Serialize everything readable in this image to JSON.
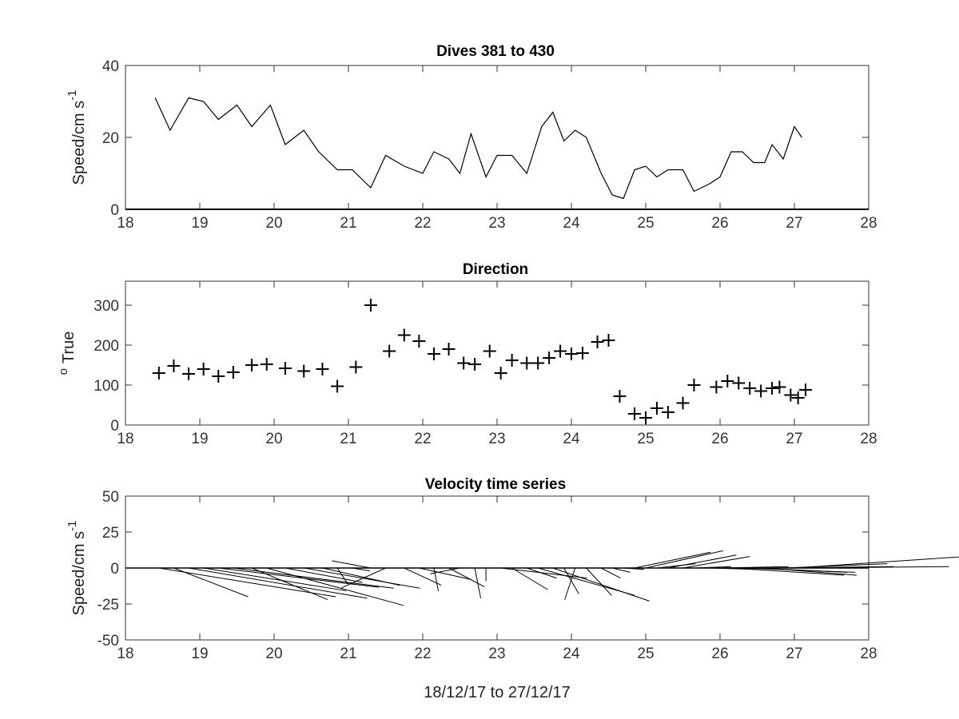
{
  "chart_data": [
    {
      "type": "line",
      "title": "Dives 381 to 430",
      "ylabel": "Speed/cm s",
      "ylabel_superscript": "-1",
      "xlim": [
        18,
        28
      ],
      "ylim": [
        0,
        40
      ],
      "xticks": [
        18,
        19,
        20,
        21,
        22,
        23,
        24,
        25,
        26,
        27,
        28
      ],
      "yticks": [
        0,
        20,
        40
      ],
      "color": "#000000",
      "x": [
        18.4,
        18.6,
        18.85,
        19.05,
        19.25,
        19.5,
        19.7,
        19.95,
        20.15,
        20.4,
        20.6,
        20.85,
        21.05,
        21.3,
        21.5,
        21.75,
        22.0,
        22.15,
        22.35,
        22.5,
        22.65,
        22.85,
        23.0,
        23.2,
        23.4,
        23.6,
        23.75,
        23.9,
        24.05,
        24.2,
        24.4,
        24.55,
        24.7,
        24.85,
        25.0,
        25.15,
        25.3,
        25.5,
        25.65,
        25.85,
        26.0,
        26.15,
        26.3,
        26.45,
        26.6,
        26.7,
        26.85,
        27.0,
        27.1
      ],
      "y": [
        31,
        22,
        31,
        30,
        25,
        29,
        23,
        29,
        18,
        22,
        16,
        11,
        11,
        6,
        15,
        12,
        10,
        16,
        14,
        10,
        21,
        9,
        15,
        15,
        10,
        23,
        27,
        19,
        22,
        20,
        10,
        4,
        3,
        11,
        12,
        9,
        11,
        11,
        5,
        7,
        9,
        16,
        16,
        13,
        13,
        18,
        14,
        23,
        20
      ]
    },
    {
      "type": "scatter",
      "title": "Direction",
      "ylabel": "True",
      "ylabel_superscript": "o",
      "xlim": [
        18,
        28
      ],
      "ylim": [
        0,
        360
      ],
      "xticks": [
        18,
        19,
        20,
        21,
        22,
        23,
        24,
        25,
        26,
        27,
        28
      ],
      "yticks": [
        0,
        100,
        200,
        300
      ],
      "marker": "+",
      "color": "#000000",
      "x": [
        18.45,
        18.65,
        18.85,
        19.05,
        19.25,
        19.45,
        19.7,
        19.9,
        20.15,
        20.4,
        20.65,
        20.85,
        21.1,
        21.3,
        21.55,
        21.75,
        21.95,
        22.15,
        22.35,
        22.55,
        22.7,
        22.9,
        23.05,
        23.2,
        23.4,
        23.55,
        23.7,
        23.85,
        24.0,
        24.15,
        24.35,
        24.5,
        24.65,
        24.85,
        25.0,
        25.15,
        25.3,
        25.5,
        25.65,
        25.95,
        26.1,
        26.25,
        26.4,
        26.55,
        26.7,
        26.8,
        26.95,
        27.05,
        27.15
      ],
      "y": [
        130,
        148,
        128,
        140,
        122,
        132,
        150,
        152,
        142,
        135,
        140,
        97,
        145,
        300,
        185,
        225,
        210,
        178,
        190,
        155,
        152,
        185,
        130,
        162,
        155,
        155,
        168,
        185,
        178,
        180,
        208,
        212,
        72,
        28,
        18,
        42,
        32,
        55,
        100,
        95,
        110,
        105,
        92,
        85,
        92,
        95,
        75,
        68,
        88
      ]
    },
    {
      "type": "quiver",
      "title": "Velocity time series",
      "ylabel": "Speed/cm s",
      "ylabel_superscript": "-1",
      "xlabel": "18/12/17 to 27/12/17",
      "xlim": [
        18,
        28
      ],
      "ylim": [
        -50,
        50
      ],
      "xticks": [
        18,
        19,
        20,
        21,
        22,
        23,
        24,
        25,
        26,
        27,
        28
      ],
      "yticks": [
        -50,
        -25,
        0,
        25,
        50
      ],
      "color": "#000000",
      "x": [
        18.45,
        18.65,
        18.85,
        19.05,
        19.25,
        19.45,
        19.7,
        19.9,
        20.15,
        20.4,
        20.65,
        20.85,
        21.05,
        21.3,
        21.5,
        21.75,
        21.95,
        22.15,
        22.35,
        22.5,
        22.7,
        22.85,
        23.05,
        23.2,
        23.4,
        23.55,
        23.75,
        23.9,
        24.05,
        24.2,
        24.4,
        24.55,
        24.7,
        24.85,
        25.0,
        25.15,
        25.3,
        25.5,
        25.65,
        25.85,
        26.0,
        26.15,
        26.3,
        26.45,
        26.6,
        26.7,
        26.85,
        27.0,
        27.1
      ],
      "u": [
        23.8,
        10.0,
        24.0,
        19.2,
        21.6,
        21.6,
        10.2,
        18.4,
        10.4,
        15.6,
        10.4,
        1.4,
        2.4,
        -5.2,
        -6.0,
        5.0,
        7.0,
        0.6,
        4.8,
        -4.0,
        0.8,
        0.0,
        11.6,
        4.8,
        4.0,
        13.0,
        13.0,
        2.0,
        -1.4,
        3.4,
        2.6,
        2.4,
        2.8,
        10.2,
        10.4,
        5.2,
        9.2,
        9.0,
        5.0,
        6.4,
        9.2,
        15.2,
        15.2,
        12.6,
        12.4,
        16.4,
        14.0,
        23.0,
        19.8
      ],
      "v": [
        -20.0,
        -20.0,
        -21.0,
        -15.8,
        -13.4,
        -14.0,
        -22.0,
        -26.0,
        -10.0,
        -14.0,
        -12.0,
        -11.0,
        -2.0,
        5.0,
        -14.0,
        -12.0,
        -8.0,
        -16.0,
        -13.0,
        -4.0,
        -21.0,
        -9.0,
        -7.0,
        -15.0,
        -7.0,
        -19.0,
        -23.0,
        -18.0,
        -22.0,
        -19.0,
        -7.0,
        -3.0,
        -1.0,
        11.0,
        12.0,
        3.0,
        9.0,
        8.0,
        1.0,
        -1.0,
        1.0,
        -5.0,
        -3.0,
        -3.0,
        -5.0,
        1.0,
        3.0,
        8.0,
        1.0
      ]
    }
  ]
}
